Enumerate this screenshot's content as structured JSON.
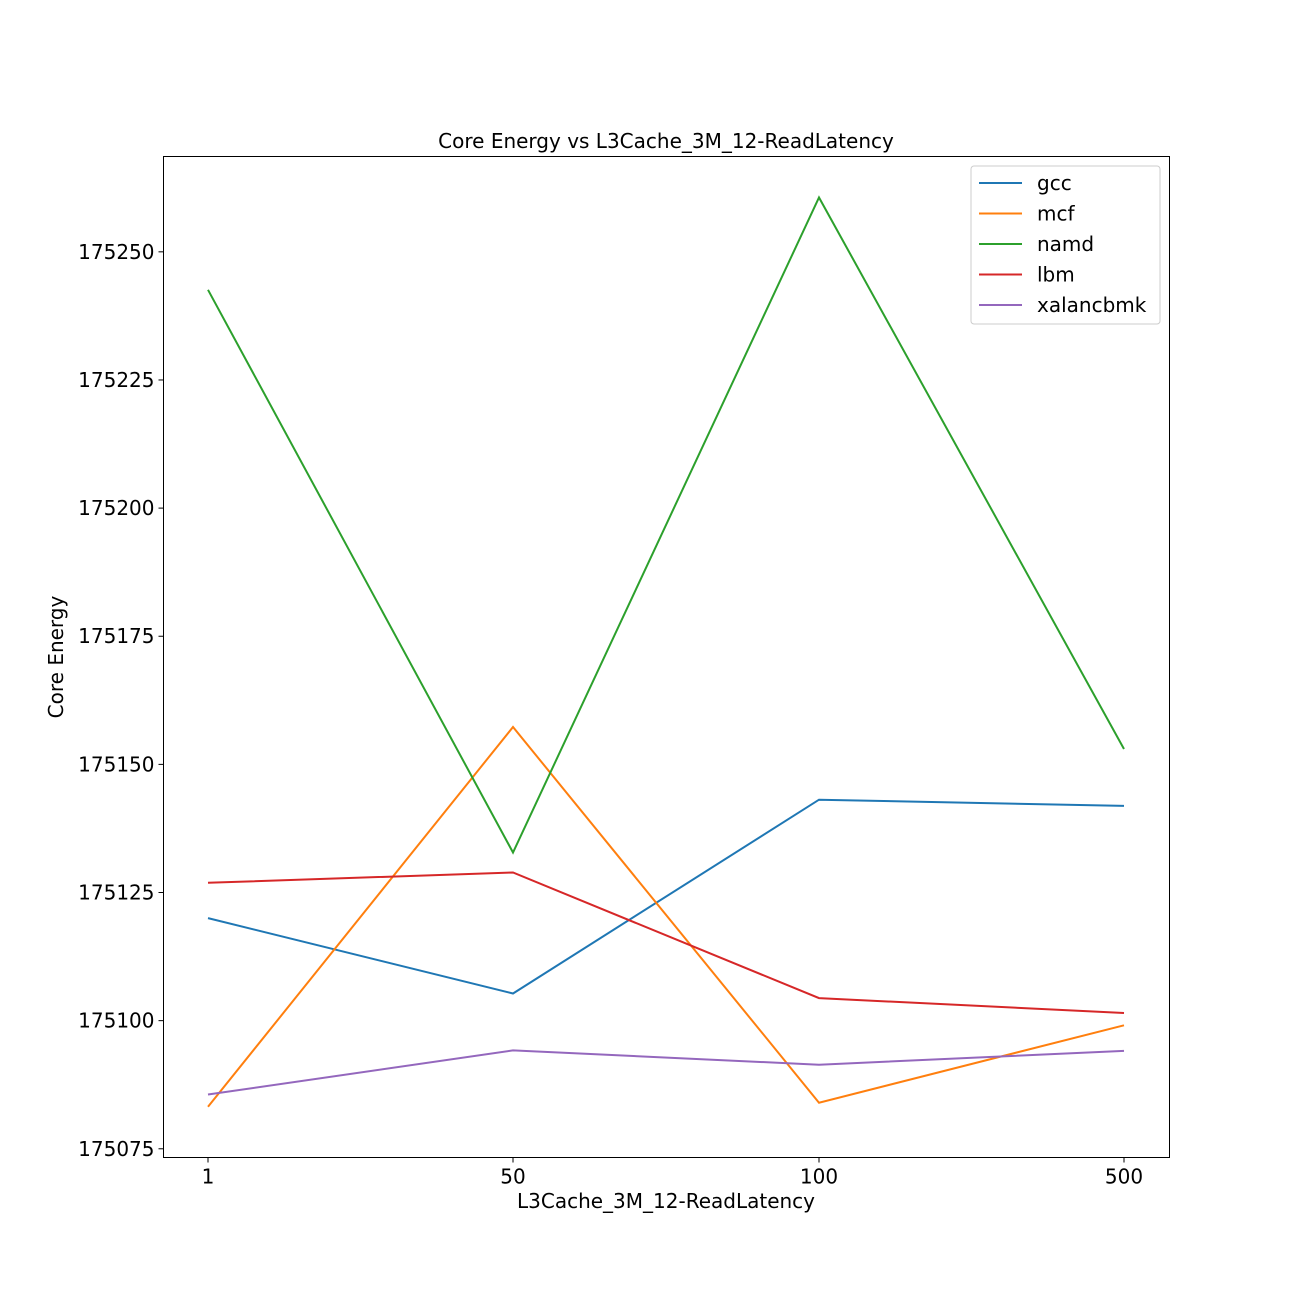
{
  "chart_data": {
    "type": "line",
    "title": "Core Energy vs L3Cache_3M_12-ReadLatency",
    "xlabel": "L3Cache_3M_12-ReadLatency",
    "ylabel": "Core Energy",
    "categories": [
      "1",
      "50",
      "100",
      "500"
    ],
    "yticks": [
      "175075",
      "175100",
      "175125",
      "175150",
      "175175",
      "175200",
      "175225",
      "175250"
    ],
    "ylim": [
      175073.3,
      175268.6
    ],
    "grid": false,
    "legend_position": "top-right",
    "series": [
      {
        "name": "gcc",
        "color": "#1f77b4",
        "values": [
          175120.0,
          175105.3,
          175143.1,
          175141.9
        ]
      },
      {
        "name": "mcf",
        "color": "#ff7f0e",
        "values": [
          175083.2,
          175157.3,
          175084.0,
          175099.1
        ]
      },
      {
        "name": "namd",
        "color": "#2ca02c",
        "values": [
          175242.6,
          175132.8,
          175260.6,
          175153.0
        ]
      },
      {
        "name": "lbm",
        "color": "#d62728",
        "values": [
          175126.9,
          175128.9,
          175104.4,
          175101.5
        ]
      },
      {
        "name": "xalancbmk",
        "color": "#9467bd",
        "values": [
          175085.6,
          175094.2,
          175091.4,
          175094.1
        ]
      }
    ]
  }
}
